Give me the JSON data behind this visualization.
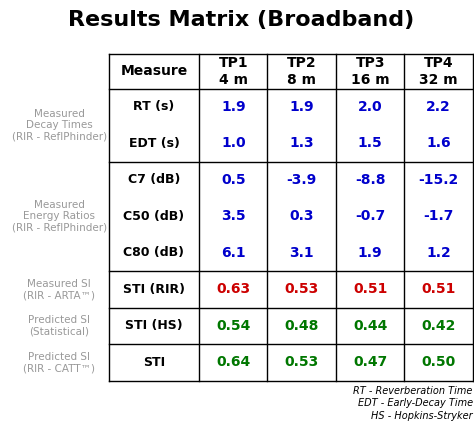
{
  "title": "Results Matrix (Broadband)",
  "title_fontsize": 16,
  "background_color": "#ffffff",
  "col_headers": [
    {
      "label": "Measure",
      "sub": ""
    },
    {
      "label": "TP1",
      "sub": "4 m"
    },
    {
      "label": "TP2",
      "sub": "8 m"
    },
    {
      "label": "TP3",
      "sub": "16 m"
    },
    {
      "label": "TP4",
      "sub": "32 m"
    }
  ],
  "row_groups": [
    {
      "group_label": "Measured\nDecay Times\n(RIR - ReflPhinder)",
      "rows": [
        {
          "measure": "RT (s)",
          "values": [
            "1.9",
            "1.9",
            "2.0",
            "2.2"
          ],
          "color": "#0000cc"
        },
        {
          "measure": "EDT (s)",
          "values": [
            "1.0",
            "1.3",
            "1.5",
            "1.6"
          ],
          "color": "#0000cc"
        }
      ]
    },
    {
      "group_label": "Measured\nEnergy Ratios\n(RIR - ReflPhinder)",
      "rows": [
        {
          "measure": "C7 (dB)",
          "values": [
            "0.5",
            "-3.9",
            "-8.8",
            "-15.2"
          ],
          "color": "#0000cc"
        },
        {
          "measure": "C50 (dB)",
          "values": [
            "3.5",
            "0.3",
            "-0.7",
            "-1.7"
          ],
          "color": "#0000cc"
        },
        {
          "measure": "C80 (dB)",
          "values": [
            "6.1",
            "3.1",
            "1.9",
            "1.2"
          ],
          "color": "#0000cc"
        }
      ]
    },
    {
      "group_label": "Measured SI\n(RIR - ARTA™)",
      "rows": [
        {
          "measure": "STI (RIR)",
          "values": [
            "0.63",
            "0.53",
            "0.51",
            "0.51"
          ],
          "color": "#cc0000"
        }
      ]
    },
    {
      "group_label": "Predicted SI\n(Statistical)",
      "rows": [
        {
          "measure": "STI (HS)",
          "values": [
            "0.54",
            "0.48",
            "0.44",
            "0.42"
          ],
          "color": "#007700"
        }
      ]
    },
    {
      "group_label": "Predicted SI\n(RIR - CATT™)",
      "rows": [
        {
          "measure": "STI",
          "values": [
            "0.64",
            "0.53",
            "0.47",
            "0.50"
          ],
          "color": "#007700"
        }
      ]
    }
  ],
  "footnotes": [
    "RT - Reverberation Time",
    "EDT - Early-Decay Time",
    "HS - Hopkins-Stryker"
  ],
  "footnote_fontsize": 7,
  "group_label_color": "#999999",
  "measure_fontsize": 9,
  "value_fontsize": 10,
  "header_fontsize": 10,
  "group_fontsize": 7.5
}
